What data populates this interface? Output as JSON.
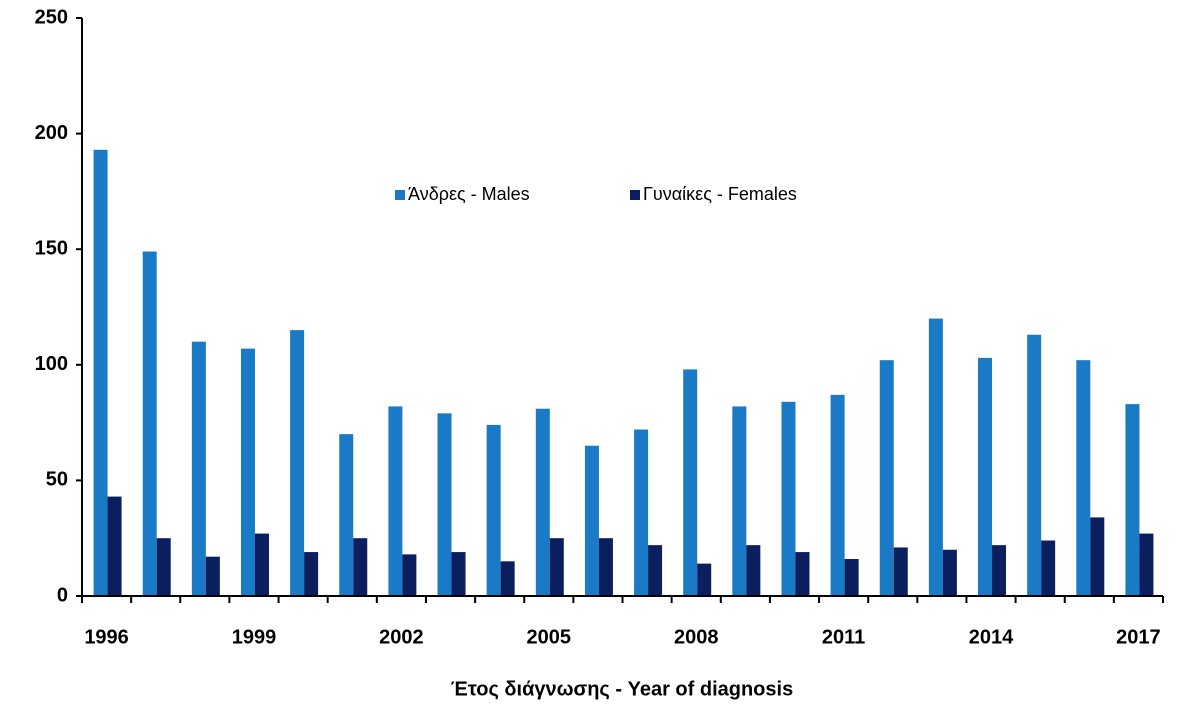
{
  "chart_data": {
    "type": "bar",
    "x_label": "Έτος διάγνωσης - Year of diagnosis",
    "categories": [
      "1996",
      null,
      null,
      "1999",
      null,
      null,
      "2002",
      null,
      null,
      "2005",
      null,
      null,
      "2008",
      null,
      null,
      "2011",
      null,
      null,
      "2014",
      null,
      null,
      "2017"
    ],
    "series": [
      {
        "name": "Άνδρες - Males",
        "color": "#1a7ac6",
        "values": [
          193,
          149,
          110,
          107,
          115,
          70,
          82,
          79,
          74,
          81,
          65,
          72,
          98,
          82,
          84,
          87,
          102,
          120,
          103,
          113,
          102,
          83
        ]
      },
      {
        "name": "Γυναίκες - Females",
        "color": "#0b1f5e",
        "values": [
          43,
          25,
          17,
          27,
          19,
          25,
          18,
          19,
          15,
          25,
          25,
          22,
          14,
          22,
          19,
          16,
          21,
          20,
          22,
          24,
          34,
          27
        ]
      }
    ],
    "ylim": [
      0,
      250
    ],
    "yticks": [
      0,
      50,
      100,
      150,
      200,
      250
    ],
    "grid": false,
    "legend": "center"
  }
}
